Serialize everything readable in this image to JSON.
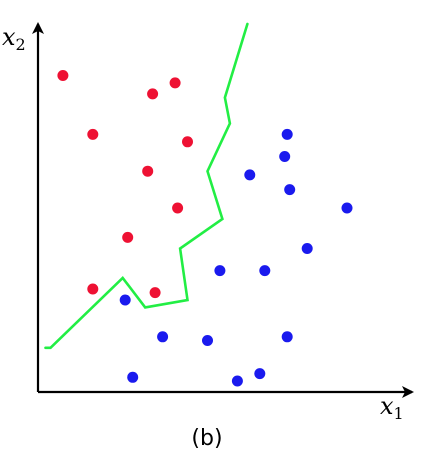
{
  "caption": "(b)",
  "axes": {
    "x_label": {
      "var": "x",
      "sub": "1"
    },
    "y_label": {
      "var": "x",
      "sub": "2"
    }
  },
  "colors": {
    "red": "#ee1133",
    "blue": "#1a1aee",
    "boundary": "#22ee44",
    "axis": "#000000"
  },
  "points": {
    "red": [
      [
        0.1,
        0.86
      ],
      [
        0.22,
        0.7
      ],
      [
        0.46,
        0.81
      ],
      [
        0.55,
        0.84
      ],
      [
        0.6,
        0.68
      ],
      [
        0.44,
        0.6
      ],
      [
        0.56,
        0.5
      ],
      [
        0.36,
        0.42
      ],
      [
        0.22,
        0.28
      ],
      [
        0.47,
        0.27
      ]
    ],
    "blue": [
      [
        0.99,
        0.64
      ],
      [
        1.0,
        0.7
      ],
      [
        0.85,
        0.59
      ],
      [
        1.01,
        0.55
      ],
      [
        1.24,
        0.5
      ],
      [
        1.08,
        0.39
      ],
      [
        0.73,
        0.33
      ],
      [
        0.91,
        0.33
      ],
      [
        0.35,
        0.25
      ],
      [
        0.5,
        0.15
      ],
      [
        0.68,
        0.14
      ],
      [
        1.0,
        0.15
      ],
      [
        0.38,
        0.04
      ],
      [
        0.8,
        0.03
      ],
      [
        0.89,
        0.05
      ]
    ]
  },
  "boundary": [
    [
      0.03,
      0.12
    ],
    [
      0.05,
      0.12
    ],
    [
      0.34,
      0.31
    ],
    [
      0.43,
      0.23
    ],
    [
      0.6,
      0.25
    ],
    [
      0.57,
      0.39
    ],
    [
      0.74,
      0.47
    ],
    [
      0.68,
      0.6
    ],
    [
      0.77,
      0.73
    ],
    [
      0.75,
      0.8
    ],
    [
      0.84,
      1.0
    ]
  ],
  "domain": {
    "x": [
      0,
      1.3
    ],
    "y": [
      0,
      1
    ]
  }
}
